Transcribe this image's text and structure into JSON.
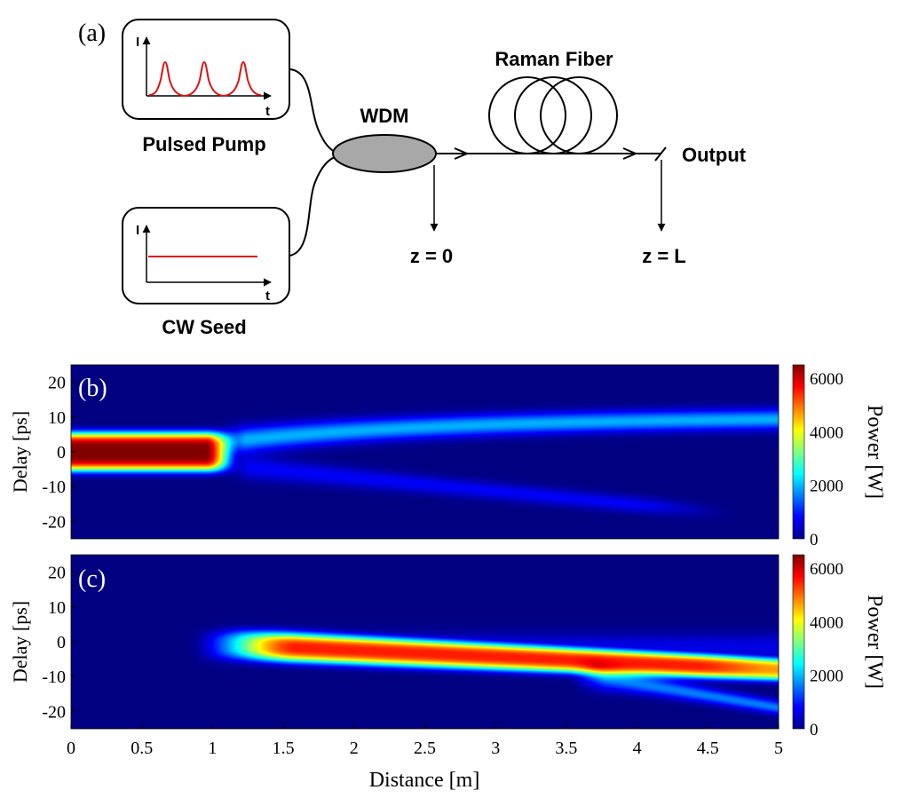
{
  "schematic": {
    "panel_label": "(a)",
    "pump": {
      "label": "Pulsed Pump",
      "axis_y": "I",
      "axis_x": "t"
    },
    "seed": {
      "label": "CW Seed",
      "axis_y": "I",
      "axis_x": "t"
    },
    "wdm_label": "WDM",
    "fiber_label": "Raman Fiber",
    "output_label": "Output",
    "z_start_label": "z = 0",
    "z_end_label": "z = L",
    "colors": {
      "signal": "#e01010",
      "wdm_fill": "#a8a8a8",
      "line": "#000000"
    }
  },
  "chart_data": [
    {
      "type": "heatmap",
      "panel_label": "(b)",
      "ylabel": "Delay [ps]",
      "xlabel": "",
      "xlim": [
        0,
        5
      ],
      "ylim": [
        -25,
        25
      ],
      "yticks": [
        20,
        10,
        0,
        -10,
        -20
      ],
      "colorbar": {
        "label": "Power [W]",
        "range": [
          0,
          6500
        ],
        "ticks": [
          6000,
          4000,
          2000,
          0
        ],
        "colormap": "jet"
      },
      "description_of_field": [
        {
          "feature": "pump pulse core",
          "x_range": [
            0,
            1.1
          ],
          "delay_center": 0,
          "delay_halfwidth": 6,
          "peak_power": 6500
        },
        {
          "feature": "residual upper branch",
          "x_range": [
            1.1,
            5
          ],
          "delay_center_start": 3,
          "delay_center_end": 10,
          "peak_power": 1800
        },
        {
          "feature": "residual lower branch",
          "x_range": [
            1.1,
            4.7
          ],
          "delay_center_start": -4,
          "delay_center_end": -18,
          "peak_power": 600
        }
      ]
    },
    {
      "type": "heatmap",
      "panel_label": "(c)",
      "ylabel": "Delay [ps]",
      "xlabel": "Distance [m]",
      "xlim": [
        0,
        5
      ],
      "ylim": [
        -25,
        25
      ],
      "xticks": [
        0,
        0.5,
        1,
        1.5,
        2,
        2.5,
        3,
        3.5,
        4,
        4.5,
        5
      ],
      "xtick_labels": [
        "0",
        "0.5",
        "1",
        "1.5",
        "2",
        "2.5",
        "3",
        "3.5",
        "4",
        "4.5",
        "5"
      ],
      "yticks": [
        20,
        10,
        0,
        -10,
        -20
      ],
      "colorbar": {
        "label": "Power [W]",
        "range": [
          0,
          6500
        ],
        "ticks": [
          6000,
          4000,
          2000,
          0
        ],
        "colormap": "jet"
      },
      "description_of_field": [
        {
          "feature": "amplified signal onset",
          "x": 0.9,
          "delay_center": -1
        },
        {
          "feature": "main amplified band",
          "x_range": [
            1.2,
            5
          ],
          "delay_center_start": -1,
          "delay_center_end": -8,
          "peak_power": 5500
        },
        {
          "feature": "split-off lower branch",
          "x_range": [
            3.7,
            5
          ],
          "delay_center_start": -10,
          "delay_center_end": -19,
          "peak_power": 1500
        }
      ]
    }
  ]
}
